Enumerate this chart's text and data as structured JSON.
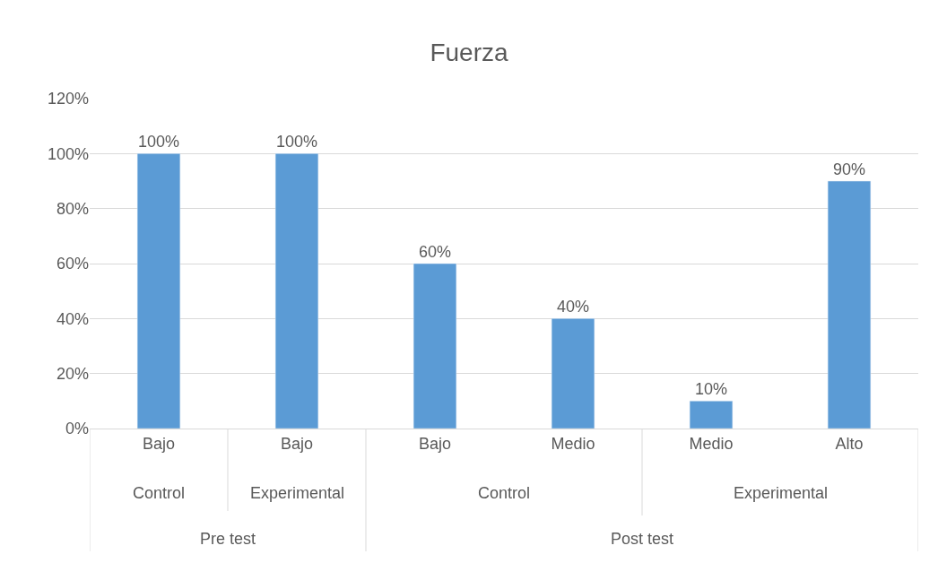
{
  "chart_data": {
    "type": "bar",
    "title": "Fuerza",
    "categories": [
      "Bajo",
      "Bajo",
      "Bajo",
      "Medio",
      "Medio",
      "Alto"
    ],
    "values": [
      100,
      100,
      60,
      40,
      10,
      90
    ],
    "value_labels": [
      "100%",
      "100%",
      "60%",
      "40%",
      "10%",
      "90%"
    ],
    "color": "#5b9bd5",
    "ylim": [
      0,
      120
    ],
    "yticks": [
      {
        "value": 0,
        "label": "0%"
      },
      {
        "value": 20,
        "label": "20%"
      },
      {
        "value": 40,
        "label": "40%"
      },
      {
        "value": 60,
        "label": "60%"
      },
      {
        "value": 80,
        "label": "80%"
      },
      {
        "value": 100,
        "label": "100%"
      },
      {
        "value": 120,
        "label": "120%"
      }
    ],
    "grid": "y",
    "annotations": [
      "Control",
      "Experimental",
      "Control",
      "Experimental",
      "Pre test",
      "Post test"
    ]
  }
}
